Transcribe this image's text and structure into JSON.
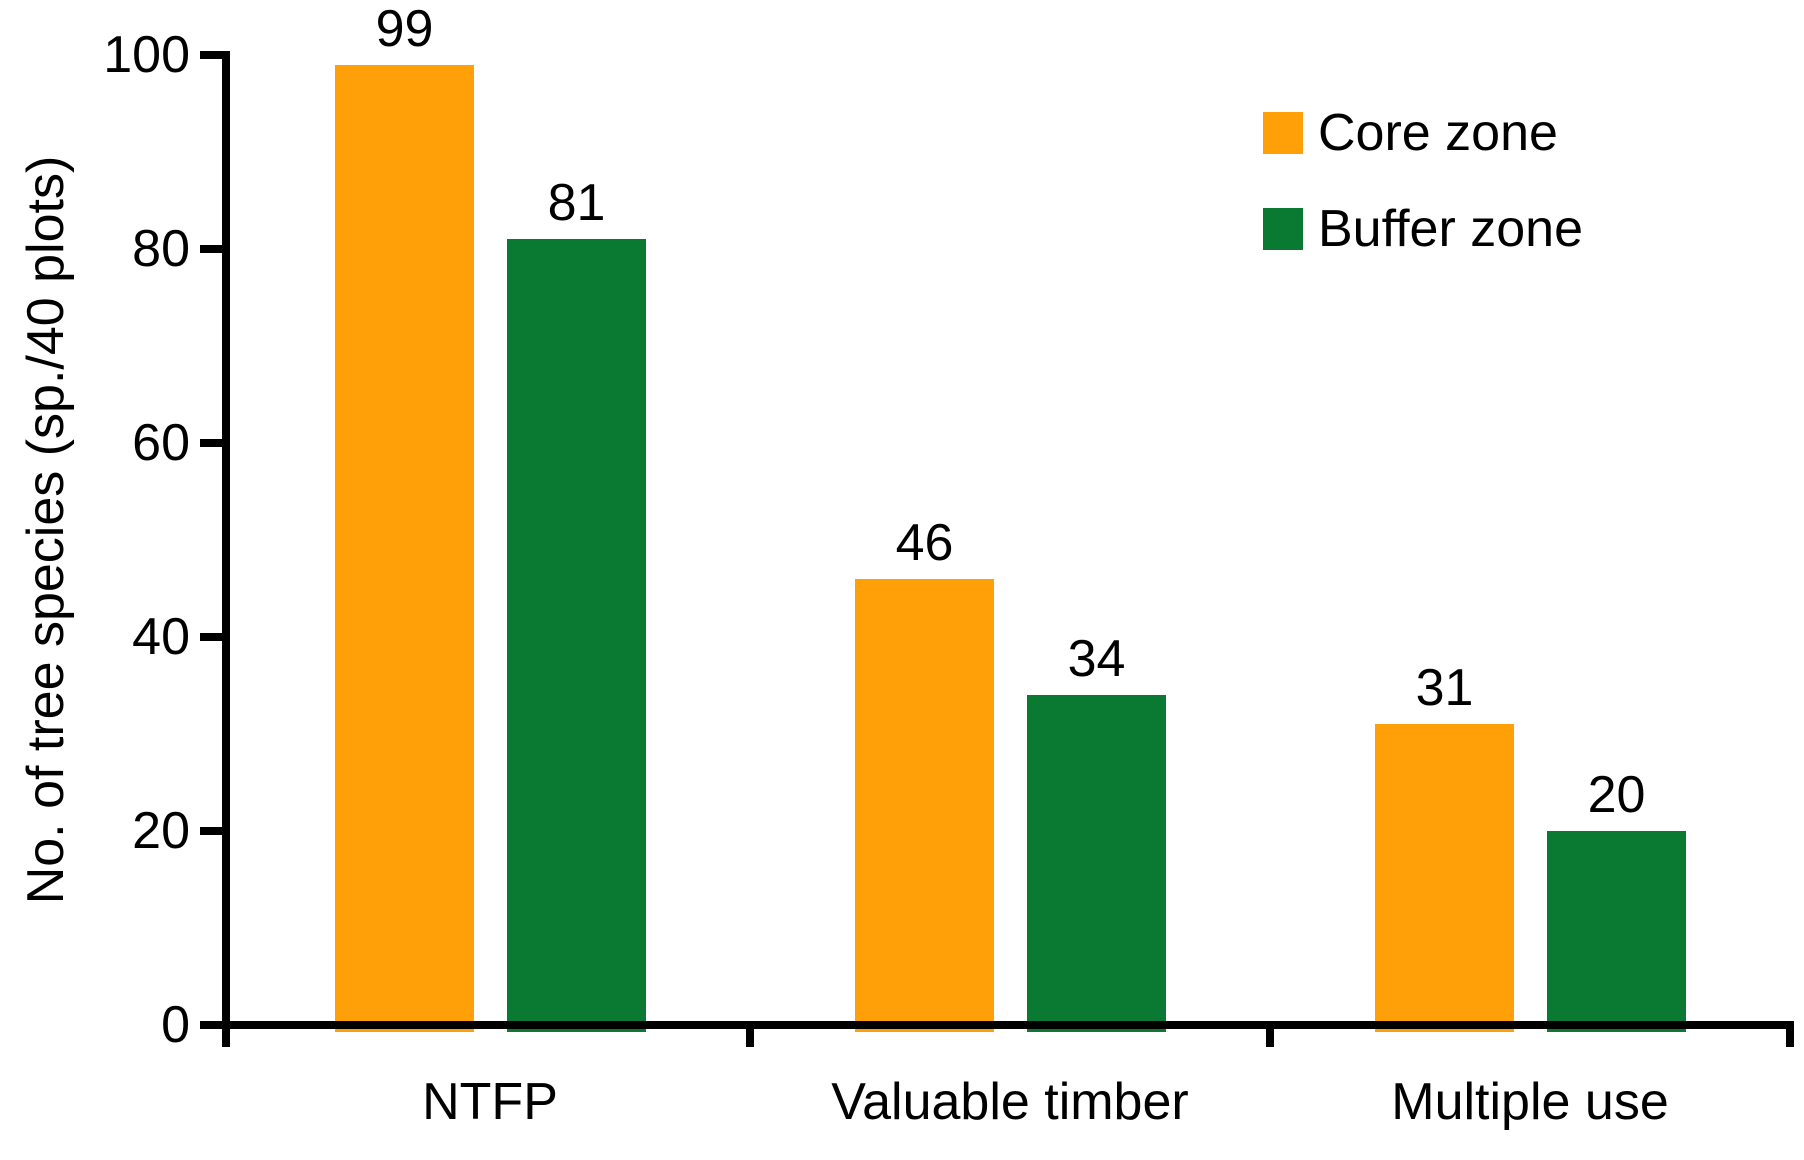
{
  "chart_data": {
    "type": "bar",
    "title": "",
    "categories": [
      "NTFP",
      "Valuable timber",
      "Multiple use"
    ],
    "series": [
      {
        "name": "Core zone",
        "color": "#FFA008",
        "values": [
          99,
          46,
          31
        ]
      },
      {
        "name": "Buffer zone",
        "color": "#0A7A32",
        "values": [
          81,
          34,
          20
        ]
      }
    ],
    "xlabel": "",
    "ylabel": "No. of tree species (sp./40 plots)",
    "yticks": [
      0,
      20,
      40,
      60,
      80,
      100
    ],
    "ylim": [
      0,
      100
    ],
    "grid": false,
    "legend_position": "upper-right",
    "value_labels": true,
    "axis_color": "#000000",
    "text_color": "#000000",
    "background_color": "#FFFFFF"
  }
}
